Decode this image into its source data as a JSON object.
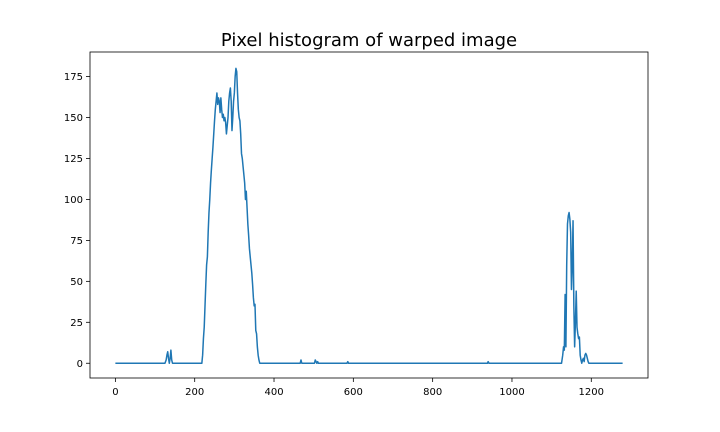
{
  "chart_data": {
    "type": "line",
    "title": "Pixel histogram of warped image",
    "xlabel": "",
    "ylabel": "",
    "xlim": [
      -64,
      1343
    ],
    "ylim": [
      -9,
      190
    ],
    "xticks": [
      0,
      200,
      400,
      600,
      800,
      1000,
      1200
    ],
    "yticks": [
      0,
      25,
      50,
      75,
      100,
      125,
      150,
      175
    ],
    "grid": false,
    "line_color": "#1f77b4",
    "series": [
      {
        "values": [
          [
            0,
            0
          ],
          [
            125,
            0
          ],
          [
            128,
            2
          ],
          [
            130,
            5
          ],
          [
            132,
            7
          ],
          [
            134,
            3
          ],
          [
            136,
            0
          ],
          [
            138,
            3
          ],
          [
            140,
            8
          ],
          [
            142,
            2
          ],
          [
            144,
            0
          ],
          [
            218,
            0
          ],
          [
            220,
            5
          ],
          [
            222,
            15
          ],
          [
            224,
            22
          ],
          [
            226,
            35
          ],
          [
            228,
            48
          ],
          [
            230,
            60
          ],
          [
            232,
            65
          ],
          [
            234,
            80
          ],
          [
            236,
            92
          ],
          [
            238,
            100
          ],
          [
            240,
            110
          ],
          [
            242,
            118
          ],
          [
            244,
            125
          ],
          [
            246,
            132
          ],
          [
            248,
            140
          ],
          [
            250,
            148
          ],
          [
            252,
            155
          ],
          [
            254,
            160
          ],
          [
            256,
            165
          ],
          [
            258,
            158
          ],
          [
            260,
            162
          ],
          [
            262,
            160
          ],
          [
            264,
            153
          ],
          [
            266,
            162
          ],
          [
            268,
            155
          ],
          [
            270,
            150
          ],
          [
            272,
            152
          ],
          [
            274,
            148
          ],
          [
            276,
            150
          ],
          [
            278,
            147
          ],
          [
            280,
            140
          ],
          [
            282,
            145
          ],
          [
            284,
            150
          ],
          [
            286,
            160
          ],
          [
            288,
            165
          ],
          [
            290,
            168
          ],
          [
            292,
            160
          ],
          [
            294,
            142
          ],
          [
            296,
            150
          ],
          [
            298,
            160
          ],
          [
            300,
            165
          ],
          [
            302,
            175
          ],
          [
            304,
            180
          ],
          [
            306,
            178
          ],
          [
            308,
            165
          ],
          [
            310,
            155
          ],
          [
            312,
            150
          ],
          [
            314,
            148
          ],
          [
            316,
            140
          ],
          [
            318,
            128
          ],
          [
            320,
            125
          ],
          [
            322,
            120
          ],
          [
            324,
            115
          ],
          [
            326,
            110
          ],
          [
            328,
            100
          ],
          [
            330,
            105
          ],
          [
            332,
            95
          ],
          [
            334,
            85
          ],
          [
            336,
            78
          ],
          [
            338,
            70
          ],
          [
            340,
            65
          ],
          [
            342,
            60
          ],
          [
            344,
            55
          ],
          [
            346,
            48
          ],
          [
            348,
            40
          ],
          [
            350,
            35
          ],
          [
            352,
            36
          ],
          [
            354,
            20
          ],
          [
            356,
            18
          ],
          [
            358,
            10
          ],
          [
            360,
            5
          ],
          [
            362,
            2
          ],
          [
            364,
            0
          ],
          [
            466,
            0
          ],
          [
            468,
            2
          ],
          [
            470,
            0
          ],
          [
            502,
            0
          ],
          [
            504,
            2
          ],
          [
            506,
            1
          ],
          [
            508,
            0
          ],
          [
            510,
            1
          ],
          [
            512,
            0
          ],
          [
            584,
            0
          ],
          [
            586,
            1
          ],
          [
            588,
            0
          ],
          [
            938,
            0
          ],
          [
            940,
            1
          ],
          [
            942,
            0
          ],
          [
            1125,
            0
          ],
          [
            1128,
            5
          ],
          [
            1130,
            10
          ],
          [
            1132,
            8
          ],
          [
            1134,
            42
          ],
          [
            1136,
            10
          ],
          [
            1138,
            60
          ],
          [
            1140,
            85
          ],
          [
            1142,
            90
          ],
          [
            1144,
            92
          ],
          [
            1146,
            88
          ],
          [
            1148,
            80
          ],
          [
            1150,
            45
          ],
          [
            1152,
            60
          ],
          [
            1154,
            87
          ],
          [
            1156,
            35
          ],
          [
            1158,
            10
          ],
          [
            1160,
            25
          ],
          [
            1162,
            44
          ],
          [
            1164,
            22
          ],
          [
            1166,
            18
          ],
          [
            1168,
            15
          ],
          [
            1170,
            16
          ],
          [
            1172,
            5
          ],
          [
            1174,
            2
          ],
          [
            1176,
            0
          ],
          [
            1178,
            2
          ],
          [
            1180,
            3
          ],
          [
            1182,
            1
          ],
          [
            1184,
            5
          ],
          [
            1186,
            6
          ],
          [
            1188,
            5
          ],
          [
            1190,
            3
          ],
          [
            1192,
            1
          ],
          [
            1194,
            0
          ],
          [
            1279,
            0
          ]
        ]
      }
    ]
  }
}
